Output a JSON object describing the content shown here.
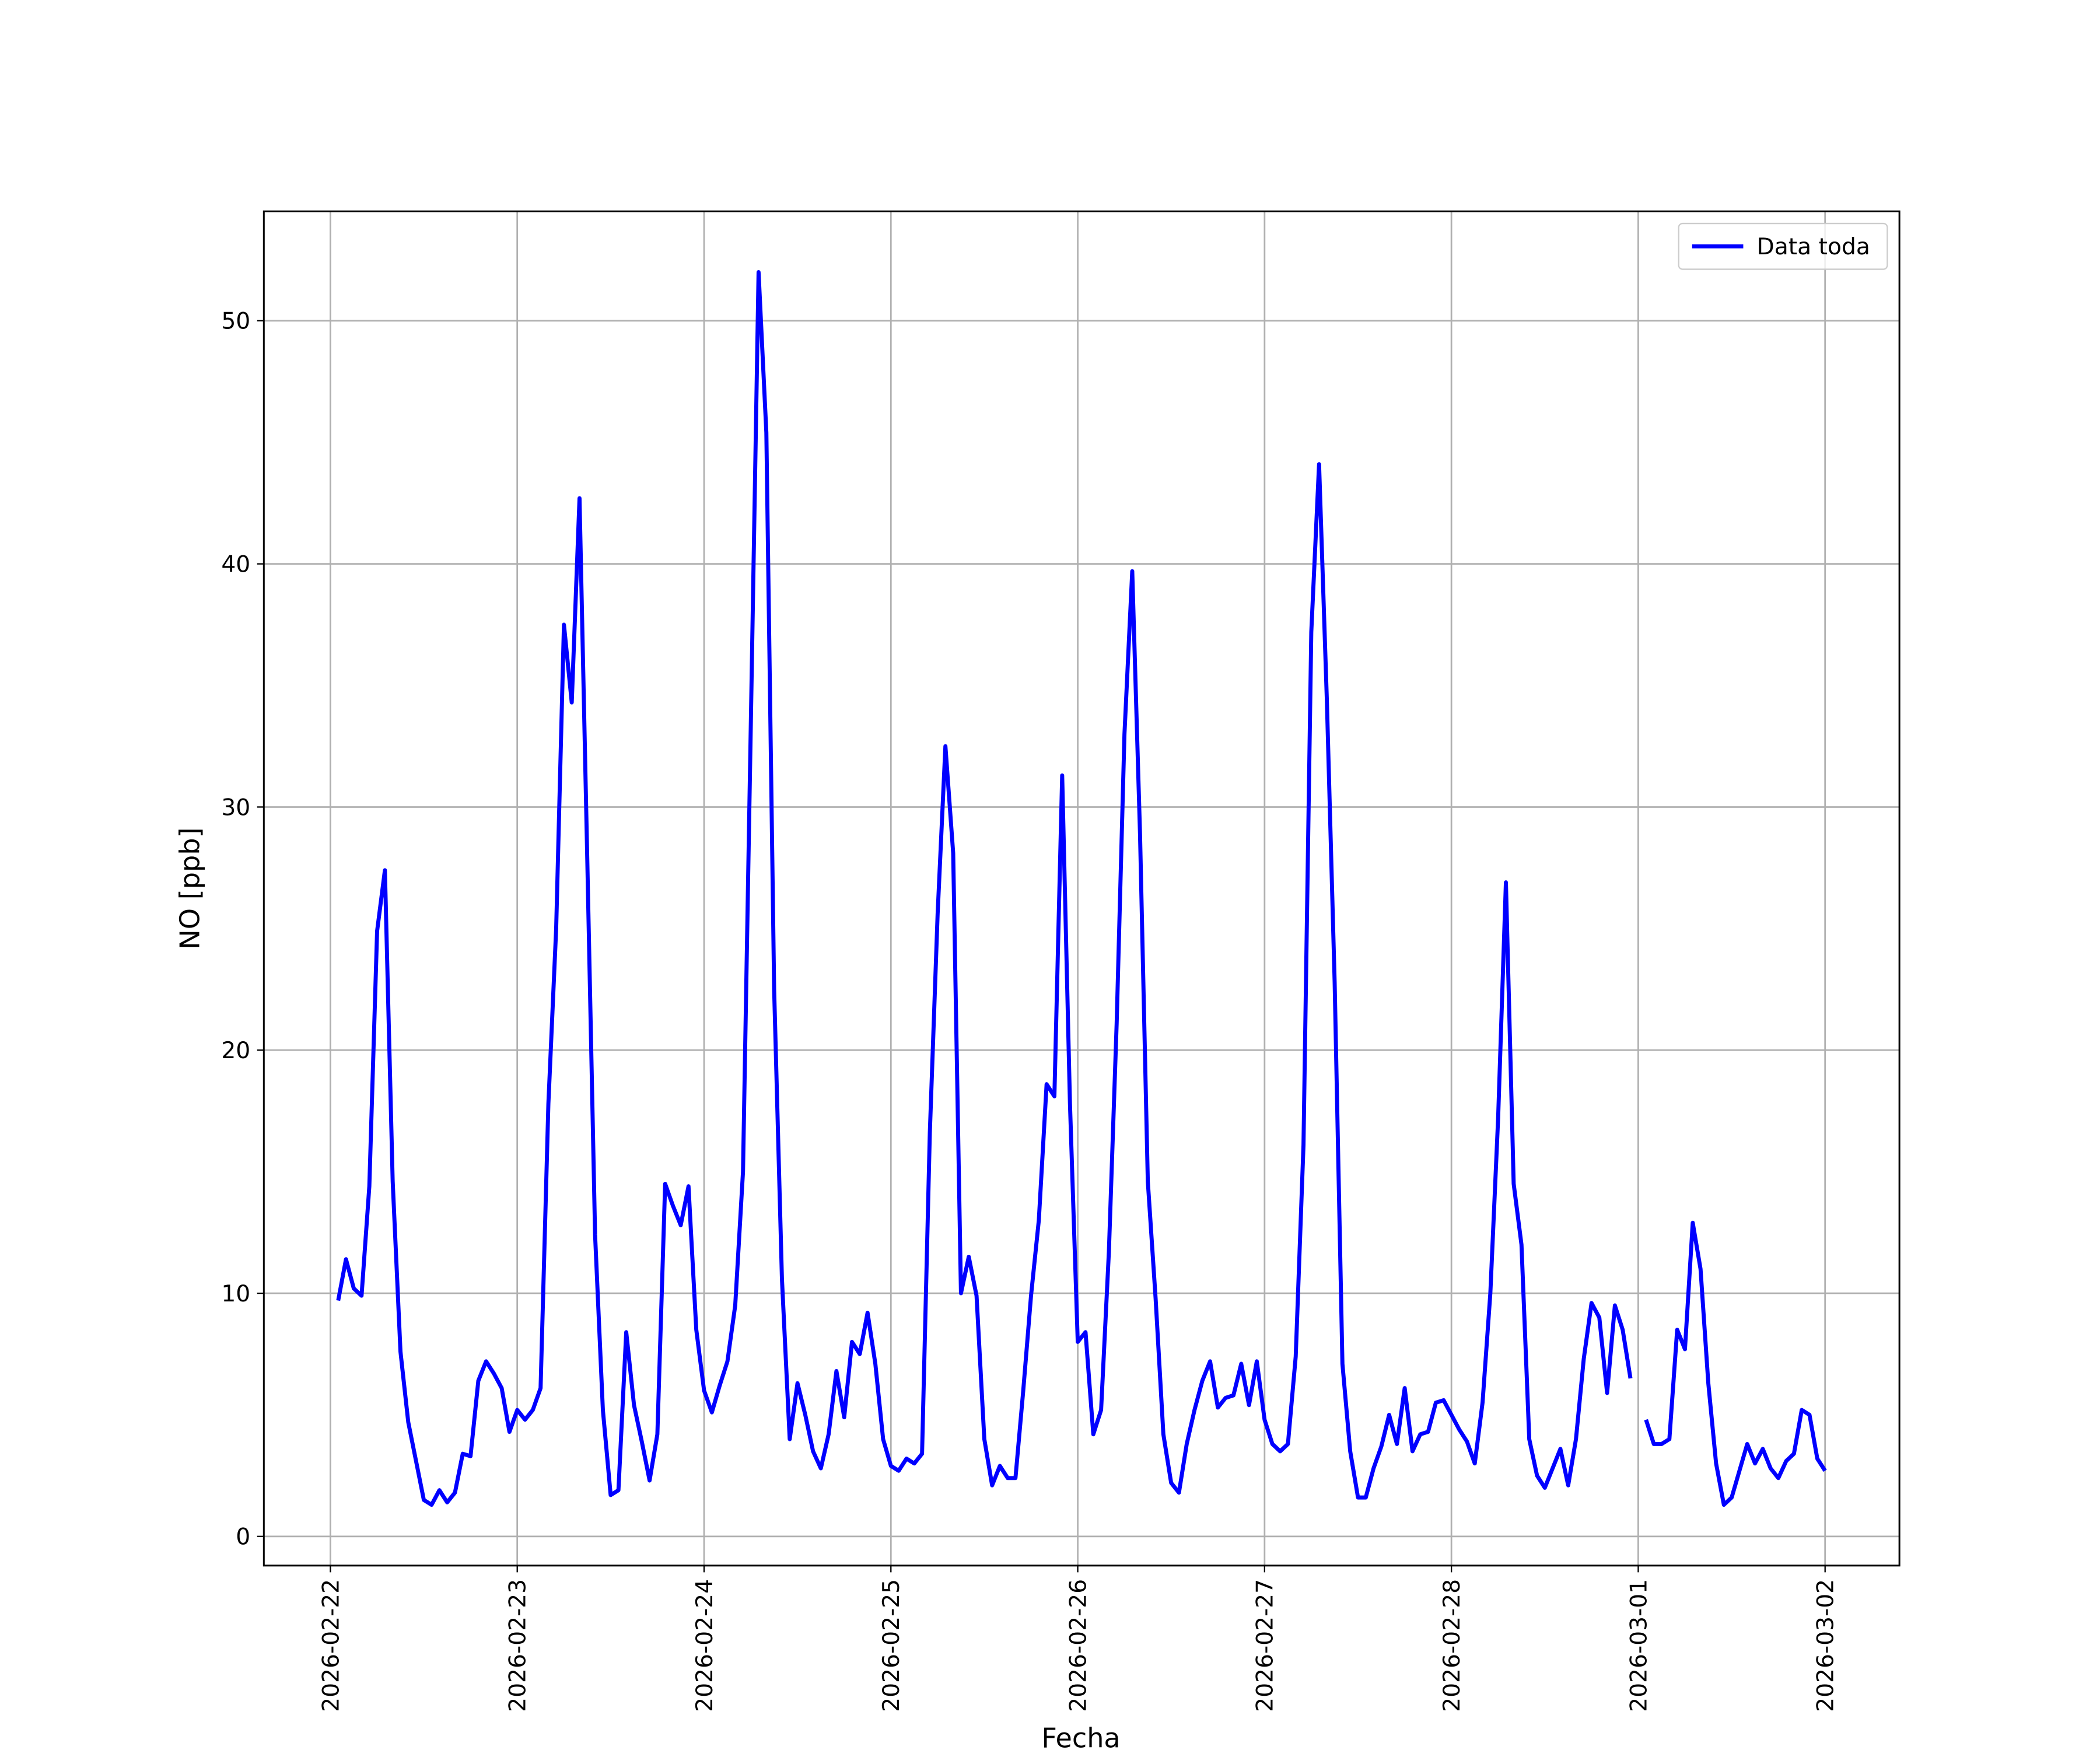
{
  "chart_data": {
    "type": "line",
    "xlabel": "Fecha",
    "ylabel": "NO [ppb]",
    "categories": [
      "2026-02-22",
      null,
      null,
      null,
      null,
      null,
      null,
      null,
      null,
      null,
      null,
      null,
      null,
      null,
      null,
      null,
      null,
      null,
      null,
      null,
      null,
      null,
      null,
      null,
      "2026-02-23",
      null,
      null,
      null,
      null,
      null,
      null,
      null,
      null,
      null,
      null,
      null,
      null,
      null,
      null,
      null,
      null,
      null,
      null,
      null,
      null,
      null,
      null,
      null,
      "2026-02-24",
      null,
      null,
      null,
      null,
      null,
      null,
      null,
      null,
      null,
      null,
      null,
      null,
      null,
      null,
      null,
      null,
      null,
      null,
      null,
      null,
      null,
      null,
      null,
      "2026-02-25",
      null,
      null,
      null,
      null,
      null,
      null,
      null,
      null,
      null,
      null,
      null,
      null,
      null,
      null,
      null,
      null,
      null,
      null,
      null,
      null,
      null,
      null,
      null,
      "2026-02-26",
      null,
      null,
      null,
      null,
      null,
      null,
      null,
      null,
      null,
      null,
      null,
      null,
      null,
      null,
      null,
      null,
      null,
      null,
      null,
      null,
      null,
      null,
      null,
      "2026-02-27",
      null,
      null,
      null,
      null,
      null,
      null,
      null,
      null,
      null,
      null,
      null,
      null,
      null,
      null,
      null,
      null,
      null,
      null,
      null,
      null,
      null,
      null,
      null,
      "2026-02-28",
      null,
      null,
      null,
      null,
      null,
      null,
      null,
      null,
      null,
      null,
      null,
      null,
      null,
      null,
      null,
      null,
      null,
      null,
      null,
      null,
      null,
      null,
      null,
      "2026-03-01",
      null,
      null,
      null,
      null,
      null,
      null,
      null,
      null,
      null,
      null,
      null,
      null,
      null,
      null,
      null,
      null,
      null,
      null,
      null,
      null,
      null,
      null,
      null,
      "2026-03-02"
    ],
    "series": [
      {
        "name": "Data toda",
        "color": "#0000ff",
        "values": [
          null,
          9.7,
          11.4,
          10.2,
          9.9,
          14.4,
          24.9,
          27.4,
          14.6,
          7.6,
          4.7,
          3.1,
          1.5,
          1.3,
          1.9,
          1.4,
          1.8,
          3.4,
          3.3,
          6.4,
          7.2,
          6.7,
          6.1,
          4.3,
          5.2,
          4.8,
          5.2,
          6.1,
          17.8,
          25.0,
          37.5,
          34.3,
          42.7,
          27.8,
          12.4,
          5.2,
          1.7,
          1.9,
          8.4,
          5.4,
          3.9,
          2.3,
          4.2,
          14.5,
          13.6,
          12.8,
          14.4,
          8.5,
          6.0,
          5.1,
          6.2,
          7.2,
          9.5,
          15.0,
          33.3,
          52.0,
          45.4,
          22.5,
          10.6,
          4.0,
          6.3,
          5.0,
          3.5,
          2.8,
          4.2,
          6.8,
          4.9,
          8.0,
          7.5,
          9.2,
          7.1,
          4.0,
          2.9,
          2.7,
          3.2,
          3.0,
          3.4,
          16.6,
          25.6,
          32.5,
          28.1,
          10.0,
          11.5,
          9.9,
          4.0,
          2.1,
          2.9,
          2.4,
          2.4,
          6.0,
          9.9,
          13.0,
          18.6,
          18.1,
          31.3,
          17.8,
          8.0,
          8.4,
          4.2,
          5.2,
          11.7,
          21.1,
          33.0,
          39.7,
          28.9,
          14.6,
          9.8,
          4.2,
          2.2,
          1.8,
          3.8,
          5.2,
          6.4,
          7.2,
          5.3,
          5.7,
          5.8,
          7.1,
          5.4,
          7.2,
          4.8,
          3.8,
          3.5,
          3.8,
          7.4,
          16.1,
          37.2,
          44.1,
          34.4,
          22.8,
          7.1,
          3.5,
          1.6,
          1.6,
          2.8,
          3.7,
          5.0,
          3.8,
          6.1,
          3.5,
          4.2,
          4.3,
          5.5,
          5.6,
          5.0,
          4.4,
          3.9,
          3.0,
          5.5,
          10.0,
          17.2,
          26.9,
          14.5,
          12.0,
          4.0,
          2.5,
          2.0,
          2.8,
          3.6,
          2.1,
          4.0,
          7.3,
          9.6,
          9.0,
          5.9,
          9.5,
          8.5,
          6.5,
          null,
          4.8,
          3.8,
          3.8,
          4.0,
          8.5,
          7.7,
          12.9,
          11.0,
          6.3,
          3.0,
          1.3,
          1.6,
          2.7,
          3.8,
          3.0,
          3.6,
          2.8,
          2.4,
          3.1,
          3.4,
          5.2,
          5.0,
          3.2,
          2.7
        ]
      }
    ],
    "ylim": [
      -1.2,
      54.5
    ],
    "yticks": [
      0,
      10,
      20,
      30,
      40,
      50
    ],
    "grid": true,
    "legend": "upper right"
  }
}
